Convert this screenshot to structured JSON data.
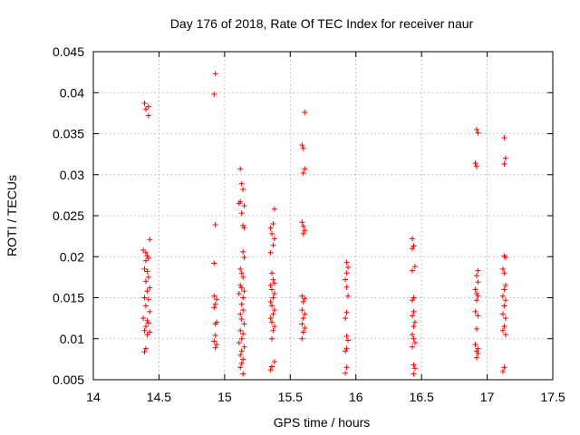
{
  "chart_data": {
    "type": "scatter",
    "title": "Day 176 of 2018, Rate Of TEC Index for receiver naur",
    "xlabel": "GPS time / hours",
    "ylabel": "ROTI / TECUs",
    "xlim": [
      14,
      17.5
    ],
    "ylim": [
      0.005,
      0.045
    ],
    "xticks": [
      14,
      14.5,
      15,
      15.5,
      16,
      16.5,
      17,
      17.5
    ],
    "xtick_labels": [
      "14",
      "14.5",
      "15",
      "15.5",
      "16",
      "16.5",
      "17",
      "17.5"
    ],
    "yticks": [
      0.005,
      0.01,
      0.015,
      0.02,
      0.025,
      0.03,
      0.035,
      0.04,
      0.045
    ],
    "ytick_labels": [
      "0.005",
      "0.01",
      "0.015",
      "0.02",
      "0.025",
      "0.03",
      "0.035",
      "0.04",
      "0.045"
    ],
    "grid": true,
    "marker": "+",
    "color": "#ff0000",
    "points": [
      [
        14.39,
        0.0387
      ],
      [
        14.4,
        0.038
      ],
      [
        14.42,
        0.0383
      ],
      [
        14.42,
        0.0372
      ],
      [
        14.38,
        0.0208
      ],
      [
        14.4,
        0.0205
      ],
      [
        14.41,
        0.0201
      ],
      [
        14.42,
        0.0198
      ],
      [
        14.43,
        0.0221
      ],
      [
        14.4,
        0.0195
      ],
      [
        14.39,
        0.0185
      ],
      [
        14.41,
        0.0182
      ],
      [
        14.42,
        0.0175
      ],
      [
        14.4,
        0.017
      ],
      [
        14.43,
        0.0162
      ],
      [
        14.41,
        0.0158
      ],
      [
        14.39,
        0.015
      ],
      [
        14.42,
        0.0148
      ],
      [
        14.4,
        0.014
      ],
      [
        14.43,
        0.0133
      ],
      [
        14.38,
        0.0125
      ],
      [
        14.41,
        0.0122
      ],
      [
        14.42,
        0.0119
      ],
      [
        14.4,
        0.0115
      ],
      [
        14.39,
        0.011
      ],
      [
        14.43,
        0.0108
      ],
      [
        14.41,
        0.0105
      ],
      [
        14.4,
        0.0088
      ],
      [
        14.39,
        0.0084
      ],
      [
        14.93,
        0.0423
      ],
      [
        14.92,
        0.0398
      ],
      [
        14.93,
        0.0239
      ],
      [
        14.92,
        0.0192
      ],
      [
        14.92,
        0.0152
      ],
      [
        14.94,
        0.0148
      ],
      [
        14.93,
        0.0142
      ],
      [
        14.92,
        0.0138
      ],
      [
        14.94,
        0.012
      ],
      [
        14.93,
        0.0118
      ],
      [
        14.93,
        0.0104
      ],
      [
        14.92,
        0.0097
      ],
      [
        14.94,
        0.0093
      ],
      [
        14.93,
        0.0089
      ],
      [
        15.12,
        0.0307
      ],
      [
        15.13,
        0.0289
      ],
      [
        15.14,
        0.0282
      ],
      [
        15.12,
        0.0267
      ],
      [
        15.15,
        0.0262
      ],
      [
        15.11,
        0.0265
      ],
      [
        15.13,
        0.0253
      ],
      [
        15.14,
        0.0238
      ],
      [
        15.15,
        0.0235
      ],
      [
        15.14,
        0.0206
      ],
      [
        15.15,
        0.0199
      ],
      [
        15.12,
        0.0185
      ],
      [
        15.13,
        0.018
      ],
      [
        15.14,
        0.0175
      ],
      [
        15.12,
        0.0165
      ],
      [
        15.13,
        0.0162
      ],
      [
        15.15,
        0.0158
      ],
      [
        15.11,
        0.0155
      ],
      [
        15.14,
        0.015
      ],
      [
        15.13,
        0.0142
      ],
      [
        15.14,
        0.0135
      ],
      [
        15.12,
        0.013
      ],
      [
        15.13,
        0.0124
      ],
      [
        15.15,
        0.0118
      ],
      [
        15.12,
        0.011
      ],
      [
        15.14,
        0.0106
      ],
      [
        15.13,
        0.01
      ],
      [
        15.11,
        0.0095
      ],
      [
        15.15,
        0.009
      ],
      [
        15.13,
        0.0085
      ],
      [
        15.12,
        0.008
      ],
      [
        15.14,
        0.0075
      ],
      [
        15.13,
        0.007
      ],
      [
        15.12,
        0.0065
      ],
      [
        15.14,
        0.0057
      ],
      [
        15.38,
        0.0258
      ],
      [
        15.35,
        0.0235
      ],
      [
        15.37,
        0.024
      ],
      [
        15.36,
        0.0228
      ],
      [
        15.38,
        0.0222
      ],
      [
        15.37,
        0.0214
      ],
      [
        15.35,
        0.0205
      ],
      [
        15.36,
        0.018
      ],
      [
        15.37,
        0.0172
      ],
      [
        15.38,
        0.0168
      ],
      [
        15.35,
        0.0165
      ],
      [
        15.36,
        0.016
      ],
      [
        15.38,
        0.0155
      ],
      [
        15.37,
        0.015
      ],
      [
        15.35,
        0.0145
      ],
      [
        15.36,
        0.014
      ],
      [
        15.38,
        0.0135
      ],
      [
        15.37,
        0.013
      ],
      [
        15.35,
        0.0125
      ],
      [
        15.36,
        0.012
      ],
      [
        15.38,
        0.0115
      ],
      [
        15.37,
        0.011
      ],
      [
        15.36,
        0.01
      ],
      [
        15.38,
        0.0072
      ],
      [
        15.36,
        0.0066
      ],
      [
        15.35,
        0.0062
      ],
      [
        15.61,
        0.0376
      ],
      [
        15.59,
        0.0336
      ],
      [
        15.6,
        0.0332
      ],
      [
        15.61,
        0.0307
      ],
      [
        15.6,
        0.0302
      ],
      [
        15.59,
        0.0242
      ],
      [
        15.6,
        0.0237
      ],
      [
        15.61,
        0.0232
      ],
      [
        15.6,
        0.0228
      ],
      [
        15.59,
        0.0152
      ],
      [
        15.61,
        0.0149
      ],
      [
        15.6,
        0.0145
      ],
      [
        15.59,
        0.0135
      ],
      [
        15.61,
        0.013
      ],
      [
        15.6,
        0.0125
      ],
      [
        15.59,
        0.0118
      ],
      [
        15.61,
        0.0113
      ],
      [
        15.6,
        0.0108
      ],
      [
        15.59,
        0.01
      ],
      [
        15.93,
        0.0193
      ],
      [
        15.94,
        0.0187
      ],
      [
        15.93,
        0.018
      ],
      [
        15.92,
        0.0172
      ],
      [
        15.93,
        0.0163
      ],
      [
        15.94,
        0.0152
      ],
      [
        15.93,
        0.0132
      ],
      [
        15.92,
        0.0125
      ],
      [
        15.93,
        0.0103
      ],
      [
        15.94,
        0.0098
      ],
      [
        15.93,
        0.0088
      ],
      [
        15.92,
        0.0085
      ],
      [
        15.93,
        0.0065
      ],
      [
        15.92,
        0.0058
      ],
      [
        16.43,
        0.0222
      ],
      [
        16.44,
        0.0213
      ],
      [
        16.43,
        0.021
      ],
      [
        16.45,
        0.0188
      ],
      [
        16.43,
        0.0183
      ],
      [
        16.44,
        0.015
      ],
      [
        16.43,
        0.0147
      ],
      [
        16.44,
        0.0133
      ],
      [
        16.43,
        0.0128
      ],
      [
        16.45,
        0.012
      ],
      [
        16.44,
        0.0115
      ],
      [
        16.43,
        0.0105
      ],
      [
        16.44,
        0.01
      ],
      [
        16.45,
        0.0095
      ],
      [
        16.43,
        0.009
      ],
      [
        16.44,
        0.0068
      ],
      [
        16.45,
        0.0064
      ],
      [
        16.44,
        0.0057
      ],
      [
        16.92,
        0.0355
      ],
      [
        16.93,
        0.0351
      ],
      [
        16.91,
        0.0314
      ],
      [
        16.92,
        0.031
      ],
      [
        16.93,
        0.0183
      ],
      [
        16.92,
        0.0177
      ],
      [
        16.93,
        0.0169
      ],
      [
        16.91,
        0.016
      ],
      [
        16.92,
        0.0155
      ],
      [
        16.93,
        0.0152
      ],
      [
        16.92,
        0.0147
      ],
      [
        16.91,
        0.0133
      ],
      [
        16.93,
        0.0128
      ],
      [
        16.92,
        0.0112
      ],
      [
        16.91,
        0.0093
      ],
      [
        16.93,
        0.0088
      ],
      [
        16.92,
        0.0085
      ],
      [
        16.93,
        0.0082
      ],
      [
        16.92,
        0.0077
      ],
      [
        17.13,
        0.0345
      ],
      [
        17.14,
        0.032
      ],
      [
        17.13,
        0.0313
      ],
      [
        17.13,
        0.0201
      ],
      [
        17.14,
        0.0199
      ],
      [
        17.12,
        0.0185
      ],
      [
        17.13,
        0.018
      ],
      [
        17.14,
        0.0165
      ],
      [
        17.13,
        0.016
      ],
      [
        17.12,
        0.0152
      ],
      [
        17.14,
        0.0147
      ],
      [
        17.13,
        0.014
      ],
      [
        17.12,
        0.013
      ],
      [
        17.14,
        0.0125
      ],
      [
        17.13,
        0.0115
      ],
      [
        17.12,
        0.011
      ],
      [
        17.14,
        0.0105
      ],
      [
        17.13,
        0.0065
      ],
      [
        17.12,
        0.006
      ]
    ]
  }
}
